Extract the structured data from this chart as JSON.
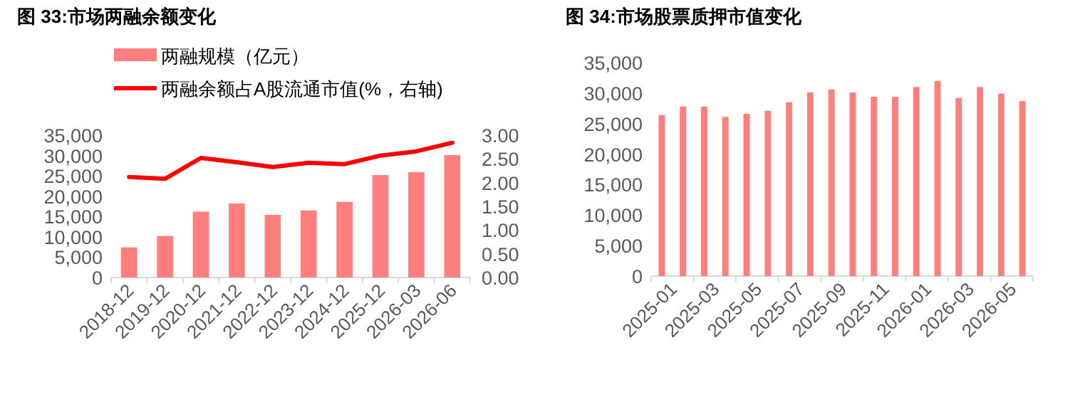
{
  "chart_data": [
    {
      "type": "bar",
      "title": "图 33:市场两融余额变化",
      "legend": "top",
      "categories": [
        "2018-12",
        "2019-12",
        "2020-12",
        "2021-12",
        "2022-12",
        "2023-12",
        "2024-12",
        "2025-12",
        "2026-03",
        "2026-06"
      ],
      "series": [
        {
          "name": "两融规模（亿元）",
          "color": "#ff7f7f",
          "values": [
            7400,
            10200,
            16200,
            18200,
            15400,
            16500,
            18600,
            25200,
            25900,
            30100
          ]
        },
        {
          "name": "两融余额占A股流通市值(%，右轴)",
          "type": "line",
          "axis": "y2",
          "color": "#ff0000",
          "values": [
            2.12,
            2.08,
            2.52,
            2.43,
            2.33,
            2.42,
            2.39,
            2.57,
            2.66,
            2.84
          ]
        }
      ],
      "ylim": [
        0,
        35000
      ],
      "yticks": [
        0,
        {
          "value": 5000,
          "label": "5,000"
        },
        {
          "value": 10000,
          "label": "10,000"
        },
        {
          "value": 15000,
          "label": "15,000"
        },
        {
          "value": 20000,
          "label": "20,000"
        },
        {
          "value": 25000,
          "label": "25,000"
        },
        {
          "value": 30000,
          "label": "30,000"
        },
        {
          "value": 35000,
          "label": "35,000"
        }
      ],
      "y2lim": [
        0,
        3
      ],
      "y2ticks": [
        {
          "value": 0,
          "label": "0.00"
        },
        {
          "value": 0.5,
          "label": "0.50"
        },
        {
          "value": 1,
          "label": "1.00"
        },
        {
          "value": 1.5,
          "label": "1.50"
        },
        {
          "value": 2,
          "label": "2.00"
        },
        {
          "value": 2.5,
          "label": "2.50"
        },
        {
          "value": 3,
          "label": "3.00"
        }
      ]
    },
    {
      "type": "bar",
      "title": "图 34:市场股票质押市值变化",
      "color": "#ff7f7f",
      "categories": [
        "2025-01",
        null,
        "2025-03",
        null,
        "2025-05",
        null,
        "2025-07",
        null,
        "2025-09",
        null,
        "2025-11",
        null,
        "2026-01",
        null,
        "2026-03",
        null,
        "2026-05",
        null
      ],
      "values": [
        26400,
        27800,
        27800,
        26100,
        26600,
        27100,
        28500,
        30100,
        30600,
        30100,
        29400,
        29400,
        31000,
        32000,
        29200,
        31000,
        29900,
        28700
      ],
      "ylim": [
        0,
        35000
      ],
      "yticks": [
        0,
        {
          "value": 5000,
          "label": "5,000"
        },
        {
          "value": 10000,
          "label": "10,000"
        },
        {
          "value": 15000,
          "label": "15,000"
        },
        {
          "value": 20000,
          "label": "20,000"
        },
        {
          "value": 25000,
          "label": "25,000"
        },
        {
          "value": 30000,
          "label": "30,000"
        },
        {
          "value": 35000,
          "label": "35,000"
        }
      ]
    }
  ]
}
